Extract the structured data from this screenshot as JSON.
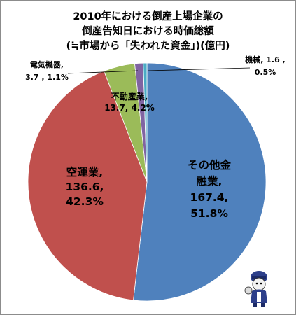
{
  "chart_data": {
    "type": "pie",
    "title_lines": [
      "2010年における倒産上場企業の",
      "倒産告知日における時価総額",
      "(≒市場から「失われた資金」)(億円)"
    ],
    "slices": [
      {
        "name": "その他金融業",
        "value": 167.4,
        "percent": "51.8%",
        "color": "#4f81bd",
        "label_lines": [
          "その他金",
          "融業,",
          "167.4,",
          "51.8%"
        ]
      },
      {
        "name": "空運業",
        "value": 136.6,
        "percent": "42.3%",
        "color": "#c0504d",
        "label_lines": [
          "空運業,",
          "136.6,",
          "42.3%"
        ]
      },
      {
        "name": "不動産業",
        "value": 13.7,
        "percent": "4.2%",
        "color": "#9bbb59",
        "label_lines": [
          "不動産業,",
          "13.7, 4.2%"
        ]
      },
      {
        "name": "電気機器",
        "value": 3.7,
        "percent": "1.1%",
        "color": "#8064a2",
        "label_lines": [
          "電気機器,",
          "3.7 , 1.1%"
        ]
      },
      {
        "name": "機械",
        "value": 1.6,
        "percent": "0.5%",
        "color": "#4bacc6",
        "label_lines": [
          "機械, 1.6 ,",
          "0.5%"
        ]
      }
    ],
    "legend": "none"
  }
}
